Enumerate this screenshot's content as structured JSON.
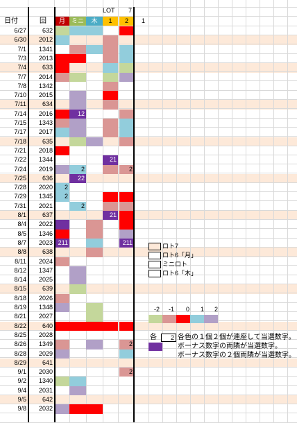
{
  "header": {
    "top_lot": "LOT",
    "top_seven": "7",
    "date_label": "日付",
    "round_label": "回",
    "col_getsu": "月",
    "col_mini": "ミニ",
    "col_moku": "木",
    "col_one": "1",
    "col_two": "2",
    "extra_one": "1"
  },
  "colors": {
    "m2": "#c4d79b",
    "m1": "#da9694",
    "z0": "#ff0000",
    "p1": "#92cddc",
    "p2": "#b1a0c7",
    "purple": "#7030a0",
    "hdr_getsu": "#c00000",
    "hdr_mini": "#9bbb59",
    "hdr_moku": "#4bacc6",
    "hdr_lot": "#ffc000",
    "band": "#fde9d9"
  },
  "rows": [
    {
      "date": "6/27",
      "round": "632",
      "band": false,
      "c": [
        "m2",
        "p1",
        "p1",
        "",
        "z0"
      ],
      "t": [
        "",
        "",
        "",
        "",
        ""
      ]
    },
    {
      "date": "6/30",
      "round": "2012",
      "band": true,
      "c": [
        "p1",
        "",
        "",
        "m1",
        ""
      ],
      "t": [
        "",
        "",
        "",
        "",
        ""
      ]
    },
    {
      "date": "7/1",
      "round": "1341",
      "band": false,
      "c": [
        "",
        "m1",
        "p1",
        "m1",
        "p1"
      ],
      "t": [
        "",
        "",
        "",
        "",
        ""
      ]
    },
    {
      "date": "7/3",
      "round": "2013",
      "band": false,
      "c": [
        "z0",
        "z0",
        "",
        "m1",
        "p1"
      ],
      "t": [
        "",
        "",
        "",
        "",
        ""
      ]
    },
    {
      "date": "7/4",
      "round": "633",
      "band": true,
      "c": [
        "z0",
        "",
        "",
        "p1",
        "m2"
      ],
      "t": [
        "",
        "",
        "",
        "",
        ""
      ]
    },
    {
      "date": "7/7",
      "round": "2014",
      "band": false,
      "c": [
        "m1",
        "m2",
        "",
        "m2",
        "p2"
      ],
      "t": [
        "",
        "",
        "",
        "",
        ""
      ]
    },
    {
      "date": "7/8",
      "round": "1342",
      "band": false,
      "c": [
        "",
        "",
        "",
        "m1",
        ""
      ],
      "t": [
        "",
        "",
        "",
        "",
        ""
      ]
    },
    {
      "date": "7/10",
      "round": "2015",
      "band": false,
      "c": [
        "",
        "p2",
        "",
        "z0",
        ""
      ],
      "t": [
        "",
        "",
        "",
        "",
        ""
      ]
    },
    {
      "date": "7/11",
      "round": "634",
      "band": true,
      "c": [
        "",
        "p2",
        "",
        "m1",
        ""
      ],
      "t": [
        "",
        "",
        "",
        "",
        ""
      ]
    },
    {
      "date": "7/14",
      "round": "2016",
      "band": false,
      "c": [
        "z0",
        "purple",
        "",
        "",
        "m1"
      ],
      "t": [
        "",
        "12",
        "",
        "",
        ""
      ]
    },
    {
      "date": "7/15",
      "round": "1343",
      "band": false,
      "c": [
        "m1",
        "p2",
        "",
        "m1",
        "p1"
      ],
      "t": [
        "",
        "",
        "",
        "",
        ""
      ]
    },
    {
      "date": "7/17",
      "round": "2017",
      "band": false,
      "c": [
        "p1",
        "p2",
        "",
        "m1",
        "p1"
      ],
      "t": [
        "",
        "",
        "",
        "",
        ""
      ]
    },
    {
      "date": "7/18",
      "round": "635",
      "band": true,
      "c": [
        "",
        "m2",
        "p2",
        "",
        "m1"
      ],
      "t": [
        "",
        "",
        "",
        "",
        ""
      ]
    },
    {
      "date": "7/21",
      "round": "2018",
      "band": false,
      "c": [
        "z0",
        "",
        "",
        "",
        ""
      ],
      "t": [
        "",
        "",
        "",
        "",
        ""
      ]
    },
    {
      "date": "7/22",
      "round": "1344",
      "band": false,
      "c": [
        "",
        "",
        "",
        "purple",
        ""
      ],
      "t": [
        "",
        "",
        "",
        "21",
        ""
      ]
    },
    {
      "date": "7/24",
      "round": "2019",
      "band": false,
      "c": [
        "p2",
        "p1",
        "",
        "m1",
        "m1"
      ],
      "t": [
        "",
        "2",
        "",
        "",
        "2"
      ]
    },
    {
      "date": "7/25",
      "round": "636",
      "band": true,
      "c": [
        "",
        "purple",
        "",
        "",
        ""
      ],
      "t": [
        "",
        "22",
        "",
        "",
        ""
      ]
    },
    {
      "date": "7/28",
      "round": "2020",
      "band": false,
      "c": [
        "p1",
        "",
        "",
        "",
        ""
      ],
      "t": [
        "2",
        "",
        "",
        "",
        ""
      ]
    },
    {
      "date": "7/29",
      "round": "1345",
      "band": false,
      "c": [
        "p1",
        "",
        "",
        "z0",
        "z0"
      ],
      "t": [
        "2",
        "",
        "",
        "",
        ""
      ]
    },
    {
      "date": "7/31",
      "round": "2021",
      "band": false,
      "c": [
        "",
        "p1",
        "",
        "m1",
        "m1"
      ],
      "t": [
        "",
        "2",
        "",
        "",
        ""
      ]
    },
    {
      "date": "8/1",
      "round": "637",
      "band": true,
      "c": [
        "",
        "",
        "",
        "purple",
        "z0"
      ],
      "t": [
        "",
        "",
        "",
        "21",
        ""
      ]
    },
    {
      "date": "8/4",
      "round": "2022",
      "band": false,
      "c": [
        "purple",
        "",
        "m1",
        "",
        "z0"
      ],
      "t": [
        "",
        "",
        "",
        "",
        ""
      ]
    },
    {
      "date": "8/5",
      "round": "1346",
      "band": false,
      "c": [
        "z0",
        "",
        "m1",
        "",
        "p2"
      ],
      "t": [
        "",
        "",
        "",
        "",
        ""
      ]
    },
    {
      "date": "8/7",
      "round": "2023",
      "band": false,
      "c": [
        "purple",
        "",
        "p1",
        "",
        "purple"
      ],
      "t": [
        "211",
        "",
        "",
        "",
        "211"
      ]
    },
    {
      "date": "8/8",
      "round": "638",
      "band": true,
      "c": [
        "",
        "",
        "m1",
        "",
        ""
      ],
      "t": [
        "",
        "",
        "",
        "",
        ""
      ]
    },
    {
      "date": "8/11",
      "round": "2024",
      "band": false,
      "c": [
        "m1",
        "",
        "",
        "",
        ""
      ],
      "t": [
        "",
        "",
        "",
        "",
        ""
      ]
    },
    {
      "date": "8/12",
      "round": "1347",
      "band": false,
      "c": [
        "",
        "p2",
        "",
        "",
        ""
      ],
      "t": [
        "",
        "",
        "",
        "",
        ""
      ]
    },
    {
      "date": "8/14",
      "round": "2025",
      "band": false,
      "c": [
        "",
        "p2",
        "",
        "",
        ""
      ],
      "t": [
        "",
        "",
        "",
        "",
        ""
      ]
    },
    {
      "date": "8/15",
      "round": "639",
      "band": true,
      "c": [
        "",
        "m2",
        "",
        "",
        ""
      ],
      "t": [
        "",
        "",
        "",
        "",
        ""
      ]
    },
    {
      "date": "8/18",
      "round": "2026",
      "band": false,
      "c": [
        "m1",
        "",
        "",
        "",
        ""
      ],
      "t": [
        "",
        "",
        "",
        "",
        ""
      ]
    },
    {
      "date": "8/19",
      "round": "1348",
      "band": false,
      "c": [
        "p2",
        "",
        "m2",
        "",
        ""
      ],
      "t": [
        "",
        "",
        "",
        "",
        ""
      ]
    },
    {
      "date": "8/21",
      "round": "2027",
      "band": false,
      "c": [
        "",
        "",
        "m2",
        "",
        ""
      ],
      "t": [
        "",
        "",
        "",
        "",
        ""
      ]
    },
    {
      "date": "8/22",
      "round": "640",
      "band": true,
      "c": [
        "z0",
        "z0",
        "z0",
        "z0",
        "z0"
      ],
      "t": [
        "",
        "",
        "",
        "",
        ""
      ]
    },
    {
      "date": "8/25",
      "round": "2028",
      "band": false,
      "c": [
        "",
        "",
        "",
        "",
        ""
      ],
      "t": [
        "",
        "",
        "",
        "",
        ""
      ]
    },
    {
      "date": "8/26",
      "round": "1349",
      "band": false,
      "c": [
        "m1",
        "",
        "p2",
        "",
        "m1"
      ],
      "t": [
        "",
        "",
        "",
        "",
        "2"
      ]
    },
    {
      "date": "8/28",
      "round": "2029",
      "band": false,
      "c": [
        "p2",
        "",
        "",
        "",
        "p1"
      ],
      "t": [
        "",
        "",
        "",
        "",
        ""
      ]
    },
    {
      "date": "8/29",
      "round": "641",
      "band": true,
      "c": [
        "",
        "",
        "",
        "",
        ""
      ],
      "t": [
        "",
        "",
        "",
        "",
        ""
      ]
    },
    {
      "date": "9/1",
      "round": "2030",
      "band": false,
      "c": [
        "",
        "",
        "",
        "",
        "m1"
      ],
      "t": [
        "",
        "",
        "",
        "",
        "2"
      ]
    },
    {
      "date": "9/2",
      "round": "1340",
      "band": false,
      "c": [
        "m2",
        "p1",
        "",
        "",
        ""
      ],
      "t": [
        "",
        "",
        "",
        "",
        ""
      ]
    },
    {
      "date": "9/4",
      "round": "2031",
      "band": false,
      "c": [
        "",
        "p2",
        "",
        "",
        ""
      ],
      "t": [
        "",
        "",
        "",
        "",
        ""
      ]
    },
    {
      "date": "9/5",
      "round": "642",
      "band": true,
      "c": [
        "",
        "",
        "",
        "",
        ""
      ],
      "t": [
        "",
        "",
        "",
        "",
        ""
      ]
    },
    {
      "date": "9/8",
      "round": "2032",
      "band": false,
      "c": [
        "p2",
        "z0",
        "z0",
        "",
        ""
      ],
      "t": [
        "",
        "",
        "",
        "",
        ""
      ]
    }
  ],
  "legend": {
    "items": [
      "ロト7",
      "ロト6「月」",
      "ミニロト",
      "ロト6「木」"
    ],
    "scale_labels": [
      "-2",
      "-1",
      "0",
      "1",
      "2"
    ],
    "note_prefix": "各",
    "note_box": "2",
    "note1": "各色の１個２個が連座して当選数字。",
    "note2": "ボーナス数字の両隣が当選数字。",
    "note3": "ボーナス数字の２個両隣が当選数字。"
  }
}
